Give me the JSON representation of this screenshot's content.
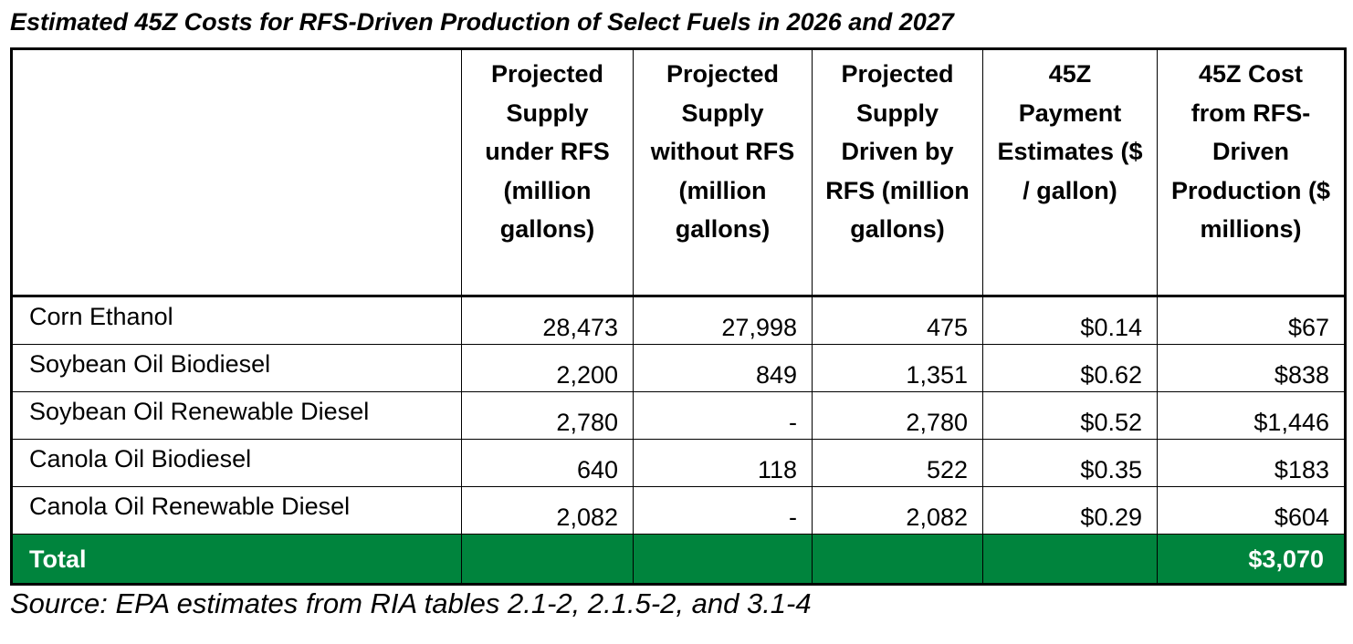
{
  "title": "Estimated 45Z Costs for RFS-Driven Production of Select Fuels in 2026 and 2027",
  "columns": [
    "",
    "Projected Supply under RFS (million gallons)",
    "Projected Supply without RFS (million gallons)",
    "Projected Supply Driven by RFS (million gallons)",
    "45Z Payment Estimates ($ / gallon)",
    "45Z Cost from RFS-Driven Production ($ millions)"
  ],
  "rows": [
    {
      "fuel": "Corn Ethanol",
      "under_rfs": "28,473",
      "without_rfs": "27,998",
      "driven_by_rfs": "475",
      "payment": "$0.14",
      "cost": "$67"
    },
    {
      "fuel": "Soybean Oil Biodiesel",
      "under_rfs": "2,200",
      "without_rfs": "849",
      "driven_by_rfs": "1,351",
      "payment": "$0.62",
      "cost": "$838"
    },
    {
      "fuel": "Soybean Oil Renewable Diesel",
      "under_rfs": "2,780",
      "without_rfs": "-",
      "driven_by_rfs": "2,780",
      "payment": "$0.52",
      "cost": "$1,446"
    },
    {
      "fuel": "Canola Oil Biodiesel",
      "under_rfs": "640",
      "without_rfs": "118",
      "driven_by_rfs": "522",
      "payment": "$0.35",
      "cost": "$183"
    },
    {
      "fuel": "Canola Oil Renewable Diesel",
      "under_rfs": "2,082",
      "without_rfs": "-",
      "driven_by_rfs": "2,082",
      "payment": "$0.29",
      "cost": "$604"
    }
  ],
  "total": {
    "label": "Total",
    "cost": "$3,070"
  },
  "source": "Source: EPA estimates from RIA tables 2.1-2, 2.1.5-2, and 3.1-4",
  "colors": {
    "total_row_bg": "#00843D",
    "total_row_text": "#ffffff"
  }
}
